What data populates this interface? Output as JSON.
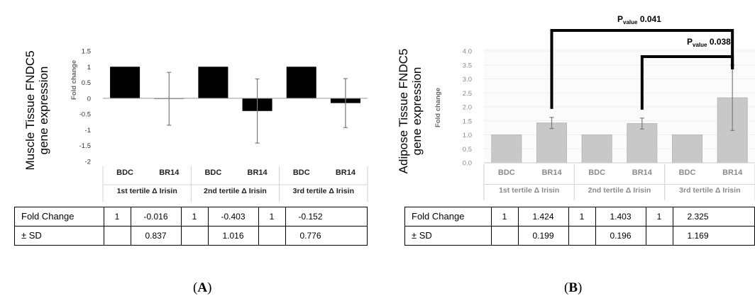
{
  "chart_data": [
    {
      "type": "bar",
      "panel": "A",
      "ylabel": "Muscle Tissue FNDC5 gene expression",
      "ylabel_lines": [
        "Muscle Tissue FNDC5",
        "gene expression"
      ],
      "ysublabel": "Fold change",
      "ylim": [
        -2,
        1.5
      ],
      "yticks": [
        -2,
        -1.5,
        -1,
        -0.5,
        0,
        0.5,
        1,
        1.5
      ],
      "bar_color": "#000000",
      "groups": [
        "1st tertile Δ Irisin",
        "2nd tertile Δ Irisin",
        "3rd tertile Δ Irisin"
      ],
      "categories": [
        "BDC",
        "BR14",
        "BDC",
        "BR14",
        "BDC",
        "BR14"
      ],
      "values": [
        1,
        -0.016,
        1,
        -0.403,
        1,
        -0.152
      ],
      "sd": [
        null,
        0.837,
        null,
        1.016,
        null,
        0.776
      ],
      "table": {
        "rows": [
          {
            "label": "Fold Change",
            "cells": [
              "1",
              "-0.016",
              "1",
              "-0.403",
              "1",
              "-0.152"
            ]
          },
          {
            "label": "± SD",
            "cells": [
              "",
              "0.837",
              "",
              "1.016",
              "",
              "0.776"
            ]
          }
        ]
      },
      "annotations": []
    },
    {
      "type": "bar",
      "panel": "B",
      "ylabel": "Adipose Tissue FNDC5 gene expression",
      "ylabel_lines": [
        "Adipose Tissue FNDC5",
        "gene expression"
      ],
      "ysublabel": "Fold change",
      "ylim": [
        0,
        4.0
      ],
      "yticks": [
        0,
        0.5,
        1.0,
        1.5,
        2.0,
        2.5,
        3.0,
        3.5,
        4.0
      ],
      "bar_color": "#c8c8c8",
      "groups": [
        "1st tertile Δ Irisin",
        "2nd tertile Δ Irisin",
        "3rd tertile Δ Irisin"
      ],
      "categories": [
        "BDC",
        "BR14",
        "BDC",
        "BR14",
        "BDC",
        "BR14"
      ],
      "values": [
        1,
        1.424,
        1,
        1.403,
        1,
        2.325
      ],
      "sd": [
        null,
        0.199,
        null,
        0.196,
        null,
        1.169
      ],
      "table": {
        "rows": [
          {
            "label": "Fold Change",
            "cells": [
              "1",
              "1.424",
              "1",
              "1.403",
              "1",
              "2.325"
            ]
          },
          {
            "label": "± SD",
            "cells": [
              "",
              "0.199",
              "",
              "0.196",
              "",
              "1.169"
            ]
          }
        ]
      },
      "annotations": [
        {
          "from_bar": 1,
          "to_bar": 5,
          "p_prefix": "P",
          "p_sub": "value",
          "p_value": "0.041"
        },
        {
          "from_bar": 3,
          "to_bar": 5,
          "p_prefix": "P",
          "p_sub": "value",
          "p_value": "0.038"
        }
      ]
    }
  ],
  "panel_labels": [
    "A",
    "B"
  ]
}
